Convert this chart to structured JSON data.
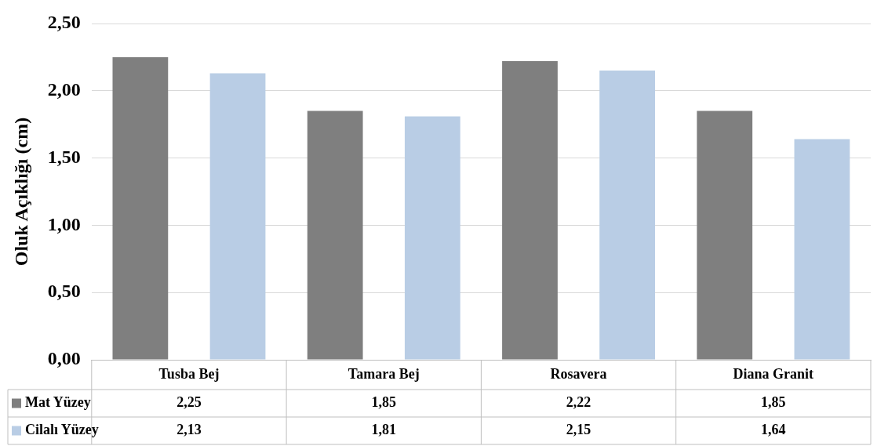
{
  "chart_data": {
    "type": "bar",
    "ylabel": "Oluk Açıklığı (cm)",
    "categories": [
      "Tusba Bej",
      "Tamara Bej",
      "Rosavera",
      "Diana Granit"
    ],
    "series": [
      {
        "name": "Mat Yüzey",
        "color": "#7f7f7f",
        "values": [
          2.25,
          1.85,
          2.22,
          1.85
        ],
        "value_labels": [
          "2,25",
          "1,85",
          "2,22",
          "1,85"
        ]
      },
      {
        "name": "Cilalı Yüzey",
        "color": "#b9cde5",
        "values": [
          2.13,
          1.81,
          2.15,
          1.64
        ],
        "value_labels": [
          "2,13",
          "1,81",
          "2,15",
          "1,64"
        ]
      }
    ],
    "ylim": [
      0,
      2.5
    ],
    "yticks": [
      {
        "value": 0,
        "label": "0,00"
      },
      {
        "value": 0.5,
        "label": "0,50"
      },
      {
        "value": 1,
        "label": "1,00"
      },
      {
        "value": 1.5,
        "label": "1,50"
      },
      {
        "value": 2,
        "label": "2,00"
      },
      {
        "value": 2.5,
        "label": "2,50"
      }
    ],
    "grid": "y",
    "legend": "bottom"
  }
}
